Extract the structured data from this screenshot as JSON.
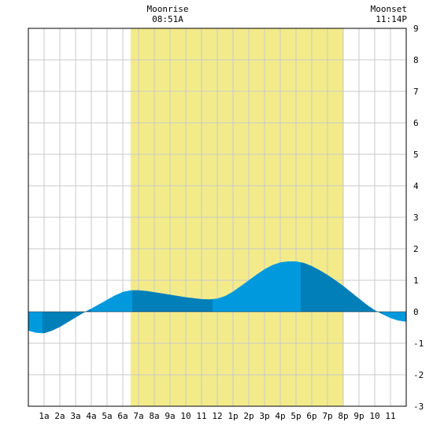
{
  "chart_data": {
    "type": "area",
    "title": "",
    "xlabel": "",
    "ylabel": "",
    "x_ticks": [
      "1a",
      "2a",
      "3a",
      "4a",
      "5a",
      "6a",
      "7a",
      "8a",
      "9a",
      "10",
      "11",
      "12",
      "1p",
      "2p",
      "3p",
      "4p",
      "5p",
      "6p",
      "7p",
      "8p",
      "9p",
      "10",
      "11"
    ],
    "y_ticks": [
      "9",
      "8",
      "7",
      "6",
      "5",
      "4",
      "3",
      "2",
      "1",
      "0",
      "-1",
      "-2",
      "-3"
    ],
    "xlim": [
      0,
      24
    ],
    "ylim": [
      -3,
      9
    ],
    "grid": true,
    "moon_events": [
      {
        "label": "Moonrise",
        "time": "08:51A",
        "hour": 8.85
      },
      {
        "label": "Moonset",
        "time": "11:14P",
        "hour": 23.23
      }
    ],
    "daylight": {
      "start_hour": 6.5,
      "end_hour": 20.0
    },
    "tide_series": {
      "name": "",
      "x": [
        0,
        0.5,
        1,
        1.5,
        2,
        2.5,
        3,
        3.5,
        4,
        4.5,
        5,
        5.5,
        6,
        6.5,
        7,
        7.5,
        8,
        8.5,
        9,
        9.5,
        10,
        10.5,
        11,
        11.5,
        12,
        12.5,
        13,
        13.5,
        14,
        14.5,
        15,
        15.5,
        16,
        16.5,
        17,
        17.5,
        18,
        18.5,
        19,
        19.5,
        20,
        20.5,
        21,
        21.5,
        22,
        22.5,
        23,
        23.5,
        24
      ],
      "values": [
        -0.6,
        -0.67,
        -0.68,
        -0.6,
        -0.48,
        -0.33,
        -0.18,
        -0.03,
        0.1,
        0.24,
        0.38,
        0.52,
        0.63,
        0.68,
        0.68,
        0.66,
        0.62,
        0.58,
        0.54,
        0.5,
        0.46,
        0.43,
        0.4,
        0.39,
        0.42,
        0.5,
        0.64,
        0.82,
        1.0,
        1.18,
        1.35,
        1.48,
        1.57,
        1.6,
        1.6,
        1.55,
        1.45,
        1.32,
        1.17,
        1.0,
        0.82,
        0.62,
        0.42,
        0.22,
        0.05,
        -0.08,
        -0.2,
        -0.28,
        -0.32
      ]
    },
    "bands": [
      {
        "start_hour": 0.9,
        "end_hour": 4.0
      },
      {
        "start_hour": 6.6,
        "end_hour": 11.7
      },
      {
        "start_hour": 17.3,
        "end_hour": 22.5
      }
    ],
    "colors": {
      "tide": "#0099dd",
      "tide_band": "#007fb9",
      "daylight": "#f3eb8a",
      "grid": "#c8c8c8",
      "zero_line": "#000000"
    }
  }
}
